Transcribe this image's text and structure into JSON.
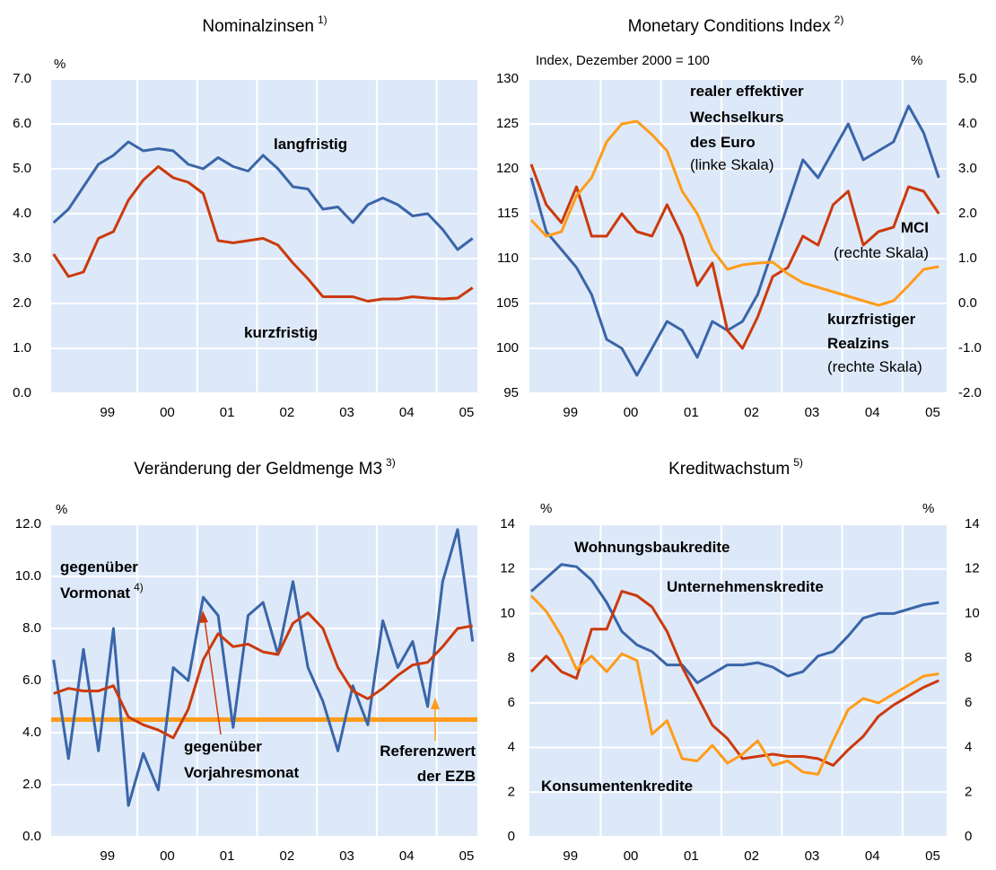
{
  "chart_data": [
    {
      "type": "line",
      "title": "Nominalzinsen",
      "title_note": "1)",
      "left_unit": "%",
      "x": [
        1998.1,
        1998.35,
        1998.6,
        1998.85,
        1999.1,
        1999.35,
        1999.6,
        1999.85,
        2000.1,
        2000.35,
        2000.6,
        2000.85,
        2001.1,
        2001.35,
        2001.6,
        2001.85,
        2002.1,
        2002.35,
        2002.6,
        2002.85,
        2003.1,
        2003.35,
        2003.6,
        2003.85,
        2004.1,
        2004.35,
        2004.6,
        2004.85,
        2005.1
      ],
      "xlim": [
        1998.06,
        2005.18
      ],
      "xticks": [
        {
          "value": 1999,
          "label": "99"
        },
        {
          "value": 2000,
          "label": "00"
        },
        {
          "value": 2001,
          "label": "01"
        },
        {
          "value": 2002,
          "label": "02"
        },
        {
          "value": 2003,
          "label": "03"
        },
        {
          "value": 2004,
          "label": "04"
        },
        {
          "value": 2005,
          "label": "05"
        }
      ],
      "ylim": [
        0,
        7
      ],
      "yticks": [
        {
          "value": 0,
          "label": "0.0"
        },
        {
          "value": 1,
          "label": "1.0"
        },
        {
          "value": 2,
          "label": "2.0"
        },
        {
          "value": 3,
          "label": "3.0"
        },
        {
          "value": 4,
          "label": "4.0"
        },
        {
          "value": 5,
          "label": "5.0"
        },
        {
          "value": 6,
          "label": "6.0"
        },
        {
          "value": 7,
          "label": "7.0"
        }
      ],
      "grid": true,
      "series": [
        {
          "name": "langfristig",
          "color": "#3a65a8",
          "values": [
            3.8,
            4.1,
            4.6,
            5.1,
            5.3,
            5.6,
            5.4,
            5.45,
            5.4,
            5.1,
            5.0,
            5.25,
            5.05,
            4.95,
            5.3,
            5.0,
            4.6,
            4.55,
            4.1,
            4.15,
            3.8,
            4.2,
            4.35,
            4.2,
            3.95,
            4.0,
            3.65,
            3.2,
            3.45
          ]
        },
        {
          "name": "kurzfristig",
          "color": "#cc3a0c",
          "values": [
            3.1,
            2.6,
            2.7,
            3.45,
            3.6,
            4.3,
            4.75,
            5.05,
            4.8,
            4.7,
            4.45,
            3.4,
            3.35,
            3.4,
            3.45,
            3.3,
            2.9,
            2.55,
            2.15,
            2.15,
            2.15,
            2.05,
            2.1,
            2.1,
            2.15,
            2.12,
            2.1,
            2.12,
            2.35
          ]
        }
      ],
      "annotations": [
        {
          "text": "langfristig",
          "color": "#3a65a8",
          "bold": true
        },
        {
          "text": "kurzfristig",
          "color": "#cc3a0c",
          "bold": true
        }
      ]
    },
    {
      "type": "line",
      "title": "Monetary Conditions Index",
      "title_note": "2)",
      "subtitle": "Index, Dezember 2000 = 100",
      "right_unit": "%",
      "x": [
        1998.35,
        1998.6,
        1998.85,
        1999.1,
        1999.35,
        1999.6,
        1999.85,
        2000.1,
        2000.35,
        2000.6,
        2000.85,
        2001.1,
        2001.35,
        2001.6,
        2001.85,
        2002.1,
        2002.35,
        2002.6,
        2002.85,
        2003.1,
        2003.35,
        2003.6,
        2003.85,
        2004.1,
        2004.35,
        2004.6,
        2004.85,
        2005.1
      ],
      "xlim": [
        1998.32,
        2005.23
      ],
      "xticks": [
        {
          "value": 1999,
          "label": "99"
        },
        {
          "value": 2000,
          "label": "00"
        },
        {
          "value": 2001,
          "label": "01"
        },
        {
          "value": 2002,
          "label": "02"
        },
        {
          "value": 2003,
          "label": "03"
        },
        {
          "value": 2004,
          "label": "04"
        },
        {
          "value": 2005,
          "label": "05"
        }
      ],
      "ylim": [
        95,
        130
      ],
      "yticks": [
        95,
        100,
        105,
        110,
        115,
        120,
        125,
        130
      ],
      "y2lim": [
        -2,
        5
      ],
      "y2ticks": [
        {
          "value": -2,
          "label": "-2.0"
        },
        {
          "value": -1,
          "label": "-1.0"
        },
        {
          "value": 0,
          "label": "0.0"
        },
        {
          "value": 1,
          "label": "1.0"
        },
        {
          "value": 2,
          "label": "2.0"
        },
        {
          "value": 3,
          "label": "3.0"
        },
        {
          "value": 4,
          "label": "4.0"
        },
        {
          "value": 5,
          "label": "5.0"
        }
      ],
      "grid": true,
      "series": [
        {
          "name": "realer effektiver Wechselkurs des Euro",
          "color": "#3a65a8",
          "values": [
            119,
            113,
            111,
            109,
            106,
            101,
            100,
            97,
            100,
            103,
            102,
            99,
            103,
            102,
            103,
            106,
            111,
            116,
            121,
            119,
            122,
            125,
            121,
            122,
            123,
            127,
            124,
            119
          ]
        },
        {
          "name": "MCI",
          "color": "#cc3a0c",
          "axis": "y2",
          "values": [
            3.1,
            2.2,
            1.8,
            2.6,
            1.5,
            1.5,
            2.0,
            1.6,
            1.5,
            2.2,
            1.5,
            0.4,
            0.9,
            -0.6,
            -1.0,
            -0.3,
            0.6,
            0.8,
            1.5,
            1.3,
            2.2,
            2.5,
            1.3,
            1.6,
            1.7,
            2.6,
            2.5,
            2.0
          ]
        },
        {
          "name": "kurzfristiger Realzins",
          "color": "#ff9c1a",
          "axis": "y2",
          "values": [
            1.86,
            1.5,
            1.6,
            2.4,
            2.8,
            3.6,
            4.0,
            4.06,
            3.76,
            3.4,
            2.5,
            2.0,
            1.2,
            0.76,
            0.86,
            0.9,
            0.92,
            0.66,
            0.46,
            0.36,
            0.26,
            0.16,
            0.06,
            -0.04,
            0.06,
            0.4,
            0.76,
            0.82
          ]
        }
      ],
      "annotations": [
        {
          "text": "realer effektiver",
          "color": "#3a65a8",
          "bold": true
        },
        {
          "text": "Wechselkurs",
          "color": "#3a65a8",
          "bold": true
        },
        {
          "text": "des Euro",
          "color": "#3a65a8",
          "bold": true
        },
        {
          "text": "(linke Skala)",
          "color": "#000000",
          "bold": false
        },
        {
          "text": "MCI",
          "color": "#cc3a0c",
          "bold": true
        },
        {
          "text": "(rechte Skala)",
          "color": "#000000",
          "bold": false
        },
        {
          "text": "kurzfristiger",
          "color": "#ff9c1a",
          "bold": true
        },
        {
          "text": "Realzins",
          "color": "#ff9c1a",
          "bold": true
        },
        {
          "text": "(rechte Skala)",
          "color": "#000000",
          "bold": false
        }
      ]
    },
    {
      "type": "line",
      "title": "Veränderung der Geldmenge M3",
      "title_note": "3)",
      "left_unit": "%",
      "x": [
        1998.1,
        1998.35,
        1998.6,
        1998.85,
        1999.1,
        1999.35,
        1999.6,
        1999.85,
        2000.1,
        2000.35,
        2000.6,
        2000.85,
        2001.1,
        2001.35,
        2001.6,
        2001.85,
        2002.1,
        2002.35,
        2002.6,
        2002.85,
        2003.1,
        2003.35,
        2003.6,
        2003.85,
        2004.1,
        2004.35,
        2004.6,
        2004.85,
        2005.1
      ],
      "xlim": [
        1998.06,
        2005.18
      ],
      "xticks": [
        {
          "value": 1999,
          "label": "99"
        },
        {
          "value": 2000,
          "label": "00"
        },
        {
          "value": 2001,
          "label": "01"
        },
        {
          "value": 2002,
          "label": "02"
        },
        {
          "value": 2003,
          "label": "03"
        },
        {
          "value": 2004,
          "label": "04"
        },
        {
          "value": 2005,
          "label": "05"
        }
      ],
      "ylim": [
        0,
        12
      ],
      "yticks": [
        {
          "value": 0,
          "label": "0.0"
        },
        {
          "value": 2,
          "label": "2.0"
        },
        {
          "value": 4,
          "label": "4.0"
        },
        {
          "value": 6,
          "label": "6.0"
        },
        {
          "value": 8,
          "label": "8.0"
        },
        {
          "value": 10,
          "label": "10.0"
        },
        {
          "value": 12,
          "label": "12.0"
        }
      ],
      "grid": true,
      "hline": {
        "value": 4.5,
        "color": "#ff9c1a"
      },
      "series": [
        {
          "name": "gegenüber Vormonat",
          "color": "#3a65a8",
          "values": [
            6.8,
            3.0,
            7.2,
            3.3,
            8.0,
            1.2,
            3.2,
            1.8,
            6.5,
            6.0,
            9.2,
            8.5,
            4.2,
            8.5,
            9.0,
            7.0,
            9.8,
            6.5,
            5.2,
            3.3,
            5.8,
            4.3,
            8.3,
            6.5,
            7.5,
            5.0,
            9.8,
            11.8,
            7.5
          ]
        },
        {
          "name": "gegenüber Vorjahresmonat",
          "color": "#cc3a0c",
          "values": [
            5.5,
            5.7,
            5.6,
            5.6,
            5.8,
            4.6,
            4.3,
            4.1,
            3.8,
            4.9,
            6.8,
            7.8,
            7.3,
            7.4,
            7.1,
            7.0,
            8.2,
            8.6,
            8.0,
            6.5,
            5.6,
            5.3,
            5.7,
            6.2,
            6.6,
            6.7,
            7.3,
            8.0,
            8.1
          ]
        }
      ],
      "annotations": [
        {
          "text": "gegenüber",
          "color": "#3a65a8",
          "bold": true
        },
        {
          "text": "Vormonat",
          "color": "#3a65a8",
          "bold": true,
          "note": "4)"
        },
        {
          "text": "gegenüber",
          "color": "#cc3a0c",
          "bold": true
        },
        {
          "text": "Vorjahresmonat",
          "color": "#cc3a0c",
          "bold": true
        },
        {
          "text": "Referenzwert",
          "color": "#ff9c1a",
          "bold": true
        },
        {
          "text": "der EZB",
          "color": "#ff9c1a",
          "bold": true
        }
      ]
    },
    {
      "type": "line",
      "title": "Kreditwachstum",
      "title_note": "5)",
      "left_unit": "%",
      "right_unit": "%",
      "x": [
        1998.35,
        1998.6,
        1998.85,
        1999.1,
        1999.35,
        1999.6,
        1999.85,
        2000.1,
        2000.35,
        2000.6,
        2000.85,
        2001.1,
        2001.35,
        2001.6,
        2001.85,
        2002.1,
        2002.35,
        2002.6,
        2002.85,
        2003.1,
        2003.35,
        2003.6,
        2003.85,
        2004.1,
        2004.35,
        2004.6,
        2004.85,
        2005.1
      ],
      "xlim": [
        1998.32,
        2005.23
      ],
      "xticks": [
        {
          "value": 1999,
          "label": "99"
        },
        {
          "value": 2000,
          "label": "00"
        },
        {
          "value": 2001,
          "label": "01"
        },
        {
          "value": 2002,
          "label": "02"
        },
        {
          "value": 2003,
          "label": "03"
        },
        {
          "value": 2004,
          "label": "04"
        },
        {
          "value": 2005,
          "label": "05"
        }
      ],
      "ylim": [
        0,
        14
      ],
      "yticks": [
        0,
        2,
        4,
        6,
        8,
        10,
        12,
        14
      ],
      "y2lim": [
        0,
        14
      ],
      "y2ticks": [
        0,
        2,
        4,
        6,
        8,
        10,
        12,
        14
      ],
      "grid": true,
      "series": [
        {
          "name": "Wohnungsbaukredite",
          "color": "#3a65a8",
          "values": [
            11.0,
            11.6,
            12.2,
            12.1,
            11.5,
            10.5,
            9.2,
            8.6,
            8.3,
            7.7,
            7.7,
            6.9,
            7.3,
            7.7,
            7.7,
            7.8,
            7.6,
            7.2,
            7.4,
            8.1,
            8.3,
            9.0,
            9.8,
            10.0,
            10.0,
            10.2,
            10.4,
            10.5
          ]
        },
        {
          "name": "Unternehmenskredite",
          "color": "#cc3a0c",
          "values": [
            7.4,
            8.1,
            7.4,
            7.1,
            9.3,
            9.3,
            11.0,
            10.8,
            10.3,
            9.2,
            7.6,
            6.3,
            5.0,
            4.4,
            3.5,
            3.6,
            3.7,
            3.6,
            3.6,
            3.5,
            3.2,
            3.9,
            4.5,
            5.4,
            5.9,
            6.3,
            6.7,
            7.0
          ]
        },
        {
          "name": "Konsumentenkredite",
          "color": "#ff9c1a",
          "values": [
            10.8,
            10.1,
            9.0,
            7.5,
            8.1,
            7.4,
            8.2,
            7.9,
            4.6,
            5.2,
            3.5,
            3.4,
            4.1,
            3.3,
            3.7,
            4.3,
            3.2,
            3.4,
            2.9,
            2.8,
            4.3,
            5.7,
            6.2,
            6.0,
            6.4,
            6.8,
            7.2,
            7.3
          ]
        }
      ],
      "annotations": [
        {
          "text": "Wohnungsbaukredite",
          "color": "#3a65a8",
          "bold": true
        },
        {
          "text": "Unternehmenskredite",
          "color": "#cc3a0c",
          "bold": true
        },
        {
          "text": "Konsumentenkredite",
          "color": "#ff9c1a",
          "bold": true
        }
      ]
    }
  ]
}
